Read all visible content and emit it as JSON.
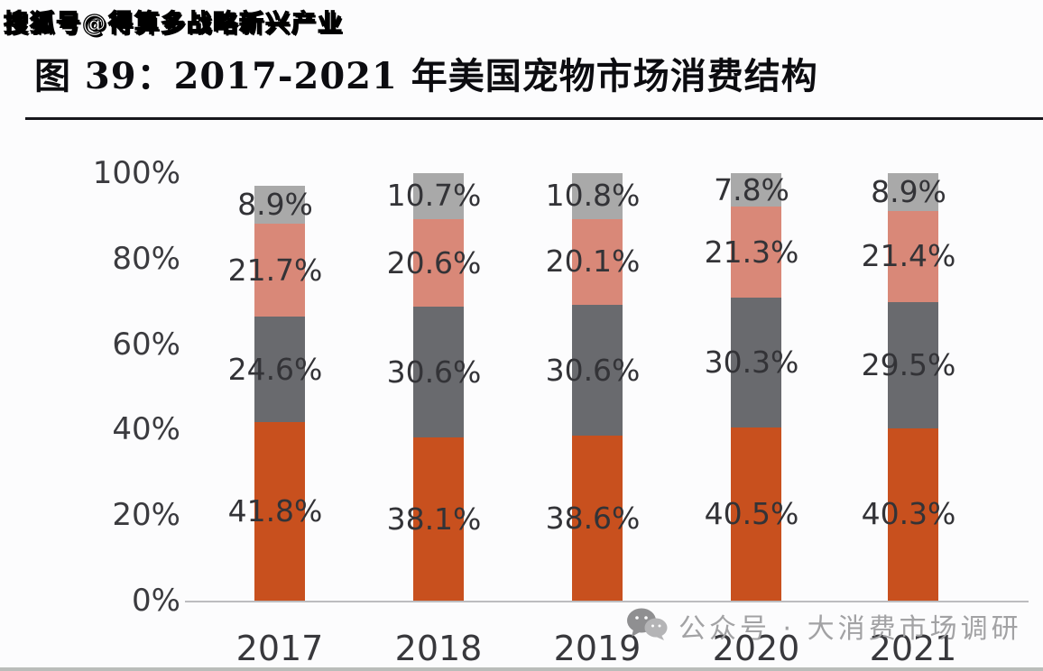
{
  "watermarks": {
    "sohu": "搜狐号@得算多战略新兴产业",
    "wechat_label": "公众号 · 大消费市场调研"
  },
  "header": {
    "title": "图 39：2017-2021 年美国宠物市场消费结构"
  },
  "chart_data": {
    "type": "bar",
    "stacked": true,
    "orientation": "vertical",
    "title": "图 39：2017-2021 年美国宠物市场消费结构",
    "categories": [
      "2017",
      "2018",
      "2019",
      "2020",
      "2021"
    ],
    "series": [
      {
        "name": "segment-bottom-orange",
        "color": "#c8501e",
        "values": [
          41.8,
          38.1,
          38.6,
          40.5,
          40.3
        ]
      },
      {
        "name": "segment-dark-gray",
        "color": "#696a6e",
        "values": [
          24.6,
          30.6,
          30.6,
          30.3,
          29.5
        ]
      },
      {
        "name": "segment-salmon",
        "color": "#d98878",
        "values": [
          21.7,
          20.6,
          20.1,
          21.3,
          21.4
        ]
      },
      {
        "name": "segment-light-gray",
        "color": "#a9a9a9",
        "values": [
          8.9,
          10.7,
          10.8,
          7.8,
          8.9
        ]
      }
    ],
    "value_suffix": "%",
    "value_decimals": 1,
    "y_ticks": [
      "100%",
      "80%",
      "60%",
      "40%",
      "20%",
      "0%"
    ],
    "ylim": [
      0,
      100
    ],
    "grid": false,
    "legend": "none",
    "data_labels": "inside-left-of-bar",
    "colors": {
      "label_text": "#333337",
      "axis_line": "#bcbcbf",
      "tick_text": "#3b3b3f"
    }
  }
}
